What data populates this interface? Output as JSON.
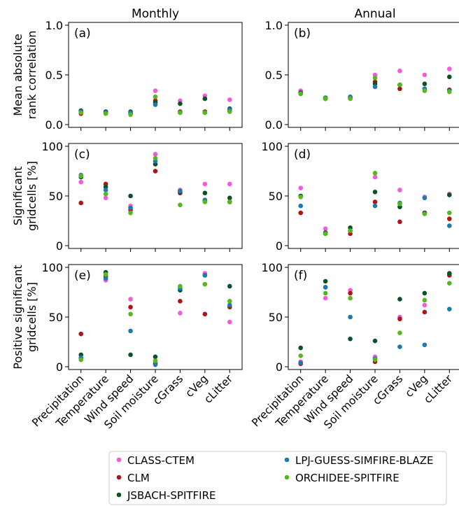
{
  "chart_data": {
    "type": "scatter",
    "column_titles": [
      "Monthly",
      "Annual"
    ],
    "row_labels": [
      [
        "Mean absolute",
        "rank correlation"
      ],
      [
        "Significant",
        "gridcells [%]"
      ],
      [
        "Positive significant",
        "gridcells [%]"
      ]
    ],
    "categories": [
      "Precipitation",
      "Temperature",
      "Wind speed",
      "Soil moisture",
      "cGrass",
      "cVeg",
      "cLitter"
    ],
    "series_styles": [
      {
        "name": "CLASS-CTEM",
        "color": "#f25bd9"
      },
      {
        "name": "CLM",
        "color": "#b01313"
      },
      {
        "name": "JSBACH-SPITFIRE",
        "color": "#0b5128"
      },
      {
        "name": "LPJ-GUESS-SIMFIRE-BLAZE",
        "color": "#1b7bb0"
      },
      {
        "name": "ORCHIDEE-SPITFIRE",
        "color": "#56b81c"
      }
    ],
    "legend_order": [
      "CLASS-CTEM",
      "LPJ-GUESS-SIMFIRE-BLAZE",
      "CLM",
      "ORCHIDEE-SPITFIRE",
      "JSBACH-SPITFIRE"
    ],
    "legend_position": "bottom",
    "panels": [
      {
        "label": "(a)",
        "row": 0,
        "col": 0,
        "ylim": [
          0,
          1
        ],
        "yticks": [
          0.0,
          0.5,
          1.0
        ],
        "ytick_labels": [
          "0.0",
          "0.5",
          "1.0"
        ],
        "series": [
          {
            "name": "CLASS-CTEM",
            "values": [
              0.13,
              0.13,
              0.11,
              0.34,
              0.24,
              0.29,
              0.25
            ]
          },
          {
            "name": "CLM",
            "values": [
              0.11,
              0.12,
              0.11,
              0.24,
              0.13,
              0.13,
              0.14
            ]
          },
          {
            "name": "JSBACH-SPITFIRE",
            "values": [
              0.14,
              0.13,
              0.13,
              0.22,
              0.21,
              0.26,
              0.16
            ]
          },
          {
            "name": "LPJ-GUESS-SIMFIRE-BLAZE",
            "values": [
              0.13,
              0.12,
              0.12,
              0.2,
              0.12,
              0.12,
              0.15
            ]
          },
          {
            "name": "ORCHIDEE-SPITFIRE",
            "values": [
              0.12,
              0.11,
              0.1,
              0.28,
              0.12,
              0.12,
              0.13
            ]
          }
        ]
      },
      {
        "label": "(b)",
        "row": 0,
        "col": 1,
        "ylim": [
          0,
          1
        ],
        "yticks": [
          0.0,
          0.5,
          1.0
        ],
        "ytick_labels": [
          "0.0",
          "0.5",
          "1.0"
        ],
        "series": [
          {
            "name": "CLASS-CTEM",
            "values": [
              0.34,
              0.26,
              0.27,
              0.5,
              0.54,
              0.5,
              0.56
            ]
          },
          {
            "name": "CLM",
            "values": [
              0.32,
              0.26,
              0.27,
              0.43,
              0.36,
              0.36,
              0.35
            ]
          },
          {
            "name": "JSBACH-SPITFIRE",
            "values": [
              0.32,
              0.27,
              0.27,
              0.41,
              0.4,
              0.41,
              0.48
            ]
          },
          {
            "name": "LPJ-GUESS-SIMFIRE-BLAZE",
            "values": [
              0.31,
              0.27,
              0.28,
              0.38,
              0.4,
              0.36,
              0.34
            ]
          },
          {
            "name": "ORCHIDEE-SPITFIRE",
            "values": [
              0.31,
              0.26,
              0.26,
              0.47,
              0.4,
              0.34,
              0.33
            ]
          }
        ]
      },
      {
        "label": "(c)",
        "row": 1,
        "col": 0,
        "ylim": [
          0,
          100
        ],
        "yticks": [
          0,
          50,
          100
        ],
        "ytick_labels": [
          "0",
          "50",
          "100"
        ],
        "series": [
          {
            "name": "CLASS-CTEM",
            "values": [
              64,
              48,
              40,
              92,
              56,
              62,
              62
            ]
          },
          {
            "name": "CLM",
            "values": [
              43,
              62,
              36,
              75,
              53,
              45,
              44
            ]
          },
          {
            "name": "JSBACH-SPITFIRE",
            "values": [
              69,
              59,
              50,
              82,
              54,
              53,
              48
            ]
          },
          {
            "name": "LPJ-GUESS-SIMFIRE-BLAZE",
            "values": [
              71,
              56,
              38,
              85,
              55,
              46,
              44
            ]
          },
          {
            "name": "ORCHIDEE-SPITFIRE",
            "values": [
              70,
              52,
              33,
              88,
              41,
              44,
              44
            ]
          }
        ]
      },
      {
        "label": "(d)",
        "row": 1,
        "col": 1,
        "ylim": [
          0,
          100
        ],
        "yticks": [
          0,
          50,
          100
        ],
        "ytick_labels": [
          "0",
          "50",
          "100"
        ],
        "series": [
          {
            "name": "CLASS-CTEM",
            "values": [
              58,
              17,
              15,
              69,
              56,
              49,
              52
            ]
          },
          {
            "name": "CLM",
            "values": [
              33,
              13,
              12,
              44,
              24,
              33,
              27
            ]
          },
          {
            "name": "JSBACH-SPITFIRE",
            "values": [
              50,
              13,
              18,
              54,
              39,
              33,
              51
            ]
          },
          {
            "name": "LPJ-GUESS-SIMFIRE-BLAZE",
            "values": [
              40,
              12,
              15,
              40,
              43,
              48,
              20
            ]
          },
          {
            "name": "ORCHIDEE-SPITFIRE",
            "values": [
              49,
              12,
              15,
              73,
              42,
              32,
              33
            ]
          }
        ]
      },
      {
        "label": "(e)",
        "row": 2,
        "col": 0,
        "ylim": [
          0,
          100
        ],
        "yticks": [
          0,
          50,
          100
        ],
        "ytick_labels": [
          "0",
          "50",
          "100"
        ],
        "series": [
          {
            "name": "CLASS-CTEM",
            "values": [
              8,
              87,
              68,
              4,
              54,
              94,
              45
            ]
          },
          {
            "name": "CLM",
            "values": [
              33,
              91,
              60,
              3,
              66,
              53,
              60
            ]
          },
          {
            "name": "JSBACH-SPITFIRE",
            "values": [
              12,
              95,
              12,
              10,
              77,
              92,
              81
            ]
          },
          {
            "name": "LPJ-GUESS-SIMFIRE-BLAZE",
            "values": [
              9,
              89,
              36,
              2,
              79,
              92,
              62
            ]
          },
          {
            "name": "ORCHIDEE-SPITFIRE",
            "values": [
              7,
              93,
              53,
              6,
              81,
              83,
              66
            ]
          }
        ]
      },
      {
        "label": "(f)",
        "row": 2,
        "col": 1,
        "ylim": [
          0,
          100
        ],
        "yticks": [
          0,
          50,
          100
        ],
        "ytick_labels": [
          "0",
          "50",
          "100"
        ],
        "series": [
          {
            "name": "CLASS-CTEM",
            "values": [
              5,
              69,
              77,
              10,
              50,
              62,
              93
            ]
          },
          {
            "name": "CLM",
            "values": [
              3,
              80,
              74,
              5,
              48,
              55,
              92
            ]
          },
          {
            "name": "JSBACH-SPITFIRE",
            "values": [
              19,
              86,
              28,
              26,
              68,
              74,
              94
            ]
          },
          {
            "name": "LPJ-GUESS-SIMFIRE-BLAZE",
            "values": [
              4,
              80,
              50,
              8,
              20,
              22,
              58
            ]
          },
          {
            "name": "ORCHIDEE-SPITFIRE",
            "values": [
              11,
              74,
              69,
              7,
              34,
              67,
              84
            ]
          }
        ]
      }
    ]
  }
}
